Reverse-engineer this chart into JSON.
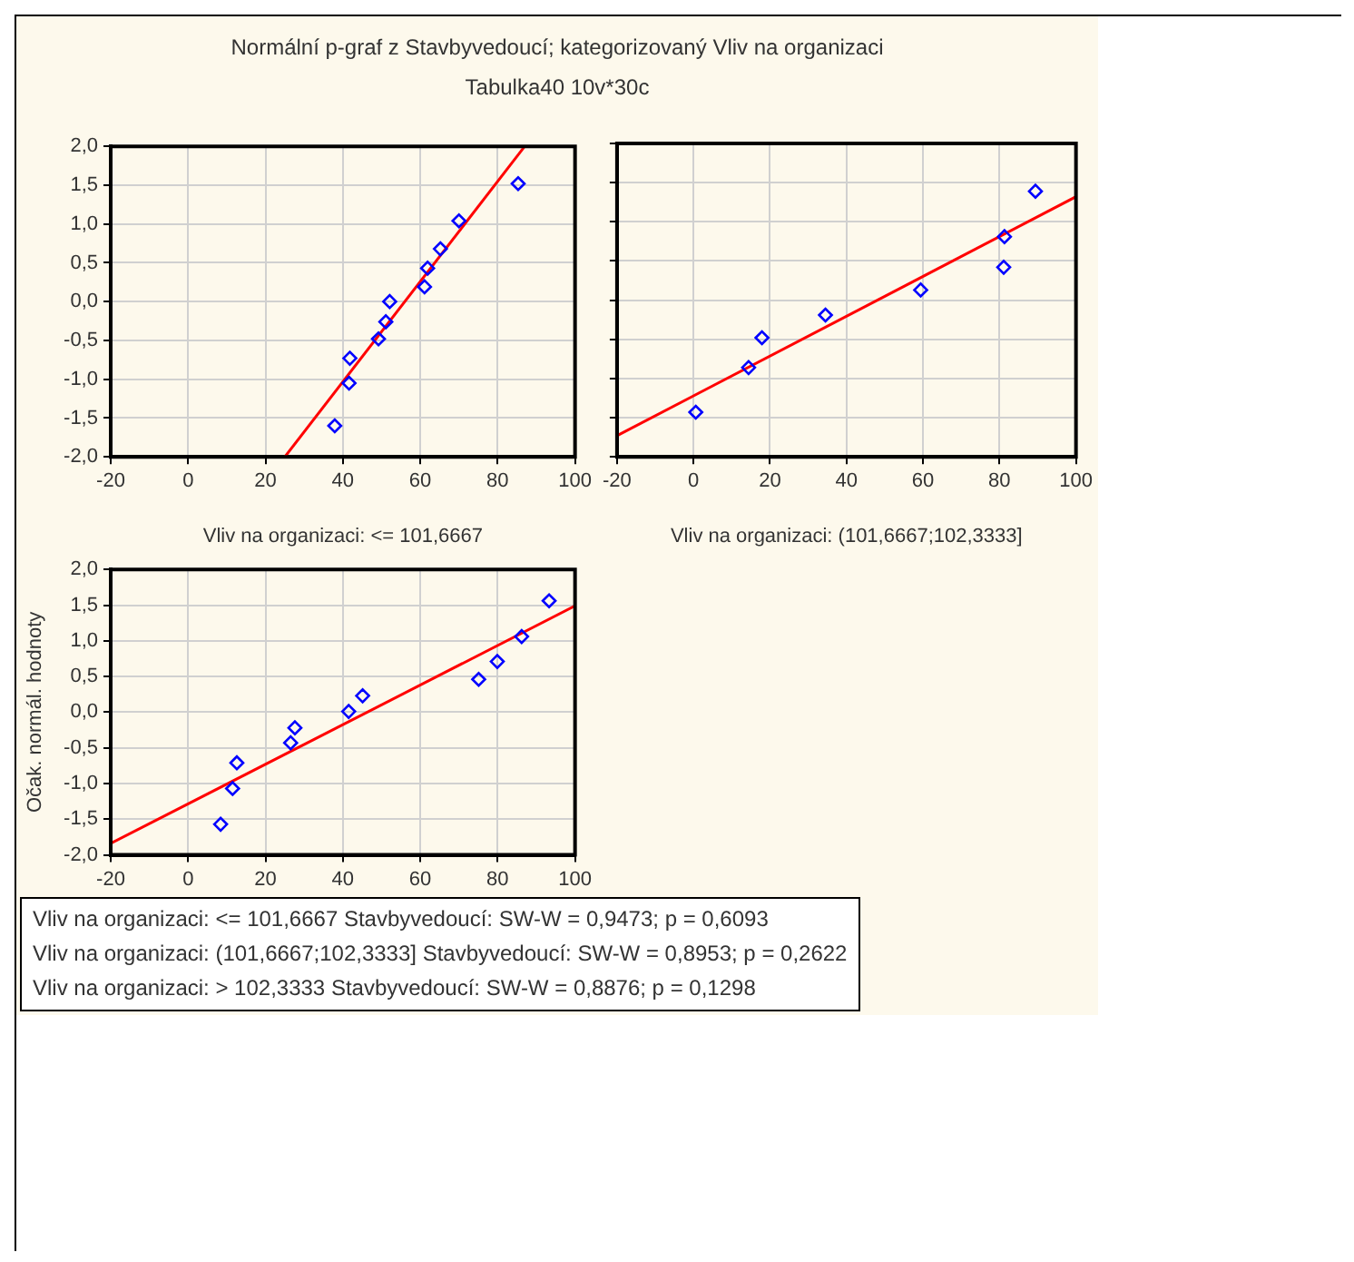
{
  "chart_data": [
    {
      "type": "scatter",
      "title": "Normální p-graf z Stavbyvedoucí; kategorizovaný Vliv na organizaci",
      "subtitle": "Tabulka40 10v*30c",
      "xlabel": "Vliv na organizaci: <= 101,6667",
      "xlim": [
        -20,
        100
      ],
      "xticks": [
        -20,
        0,
        20,
        40,
        60,
        80,
        100
      ],
      "ylim": [
        -2,
        2
      ],
      "yticks": [
        {
          "value": -2,
          "label": "-2,0"
        },
        {
          "value": -1.5,
          "label": "-1,5"
        },
        {
          "value": -1,
          "label": "-1,0"
        },
        {
          "value": -0.5,
          "label": "-0,5"
        },
        {
          "value": 0,
          "label": "0,0"
        },
        {
          "value": 0.5,
          "label": "0,5"
        },
        {
          "value": 1,
          "label": "1,0"
        },
        {
          "value": 1.5,
          "label": "1,5"
        },
        {
          "value": 2,
          "label": "2,0"
        }
      ],
      "grid": true,
      "legend": false,
      "series": [
        {
          "marker": "diamond",
          "color": "#0000ff",
          "x": [
            37.9,
            41.8,
            41.6,
            49.2,
            51.1,
            52.1,
            61.1,
            61.9,
            65.2,
            70,
            85.3
          ],
          "values": [
            -1.6,
            -0.73,
            -1.05,
            -0.48,
            -0.26,
            0,
            0.19,
            0.43,
            0.68,
            1.04,
            1.52
          ]
        },
        {
          "type": "line",
          "marker": "none",
          "color": "#ff0000",
          "x": [
            25,
            87
          ],
          "values": [
            -2,
            2
          ]
        }
      ]
    },
    {
      "type": "scatter",
      "xlabel": "Vliv na organizaci: (101,6667;102,3333]",
      "xlim": [
        -20,
        100
      ],
      "xticks": [
        -20,
        0,
        20,
        40,
        60,
        80,
        100
      ],
      "ylim": [
        -2,
        2
      ],
      "yticks": [
        -2,
        -1.5,
        -1,
        -0.5,
        0,
        0.5,
        1,
        1.5,
        2
      ],
      "tick_labels": "x",
      "grid": true,
      "legend": false,
      "series": [
        {
          "marker": "diamond",
          "color": "#0000ff",
          "x": [
            0.6,
            14.4,
            17.9,
            34.5,
            59.4,
            81.3,
            81.1,
            89.4
          ],
          "values": [
            -1.43,
            -0.86,
            -0.48,
            -0.19,
            0.13,
            0.81,
            0.42,
            1.39
          ]
        },
        {
          "type": "line",
          "marker": "none",
          "color": "#ff0000",
          "x": [
            -20,
            100
          ],
          "values": [
            -1.73,
            1.32
          ]
        }
      ]
    },
    {
      "type": "scatter",
      "ylabel": "Očak. normál. hodnoty",
      "xlim": [
        -20,
        100
      ],
      "xticks": [
        -20,
        0,
        20,
        40,
        60,
        80,
        100
      ],
      "ylim": [
        -2,
        2
      ],
      "yticks": [
        {
          "value": -2,
          "label": "-2,0"
        },
        {
          "value": -1.5,
          "label": "-1,5"
        },
        {
          "value": -1,
          "label": "-1,0"
        },
        {
          "value": -0.5,
          "label": "-0,5"
        },
        {
          "value": 0,
          "label": "0,0"
        },
        {
          "value": 0.5,
          "label": "0,5"
        },
        {
          "value": 1,
          "label": "1,0"
        },
        {
          "value": 1.5,
          "label": "1,5"
        },
        {
          "value": 2,
          "label": "2,0"
        }
      ],
      "grid": true,
      "legend": false,
      "annotations": [
        "Vliv na organizaci: <= 101,6667  Stavbyvedoucí:  SW-W = 0,9473; p = 0,6093",
        "Vliv na organizaci: (101,6667;102,3333]  Stavbyvedoucí:  SW-W = 0,8953; p = 0,2622",
        "Vliv na organizaci: > 102,3333  Stavbyvedoucí:  SW-W = 0,8876; p = 0,1298"
      ],
      "series": [
        {
          "marker": "diamond",
          "color": "#0000ff",
          "x": [
            8.4,
            11.5,
            12.6,
            26.5,
            27.6,
            41.5,
            45.1,
            75.1,
            79.9,
            86.2,
            93.3
          ],
          "values": [
            -1.57,
            -1.07,
            -0.71,
            -0.43,
            -0.22,
            0.01,
            0.23,
            0.46,
            0.71,
            1.06,
            1.56
          ]
        },
        {
          "type": "line",
          "marker": "none",
          "color": "#ff0000",
          "x": [
            -20,
            100
          ],
          "values": [
            -1.84,
            1.49
          ]
        }
      ]
    }
  ]
}
